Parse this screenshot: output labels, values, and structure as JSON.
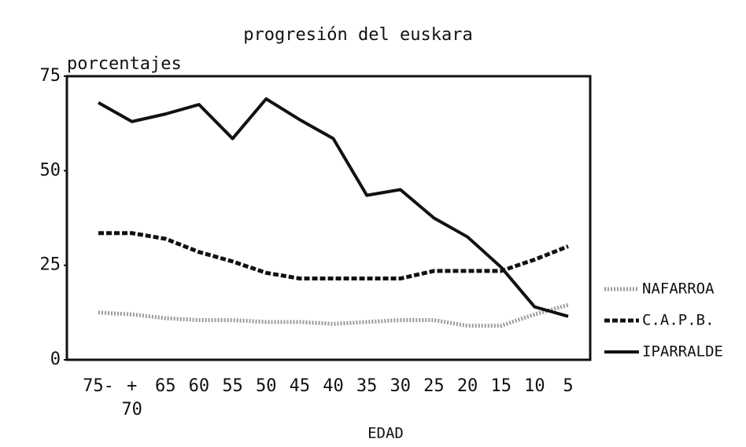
{
  "chart_data": {
    "type": "line",
    "title": "progresión del euskara",
    "y_label": "porcentajes",
    "x_label": "EDAD",
    "categories": [
      "75-",
      "+\n70",
      "65",
      "60",
      "55",
      "50",
      "45",
      "40",
      "35",
      "30",
      "25",
      "20",
      "15",
      "10",
      "5"
    ],
    "series": [
      {
        "name": "NAFARROA",
        "color": "#9a9a9a",
        "linestyle": "dotted",
        "values": [
          12.5,
          12,
          11,
          10.5,
          10.5,
          10,
          10,
          9.5,
          10,
          10.5,
          10.5,
          9,
          9,
          12,
          14.5
        ]
      },
      {
        "name": "C.A.P.B.",
        "color": "#111111",
        "linestyle": "dashed",
        "values": [
          33.5,
          33.5,
          32,
          28.5,
          26,
          23,
          21.5,
          21.5,
          21.5,
          21.5,
          23.5,
          23.5,
          23.5,
          26.5,
          30
        ]
      },
      {
        "name": "IPARRALDE",
        "color": "#111111",
        "linestyle": "solid",
        "values": [
          68,
          63,
          65,
          67.5,
          58.5,
          69,
          63.5,
          58.5,
          43.5,
          45,
          37.5,
          32.5,
          24.5,
          14,
          11.5
        ]
      }
    ],
    "ylim": [
      0,
      75
    ],
    "yticks": [
      0,
      25,
      50,
      75
    ],
    "grid": false,
    "legend": "right"
  }
}
